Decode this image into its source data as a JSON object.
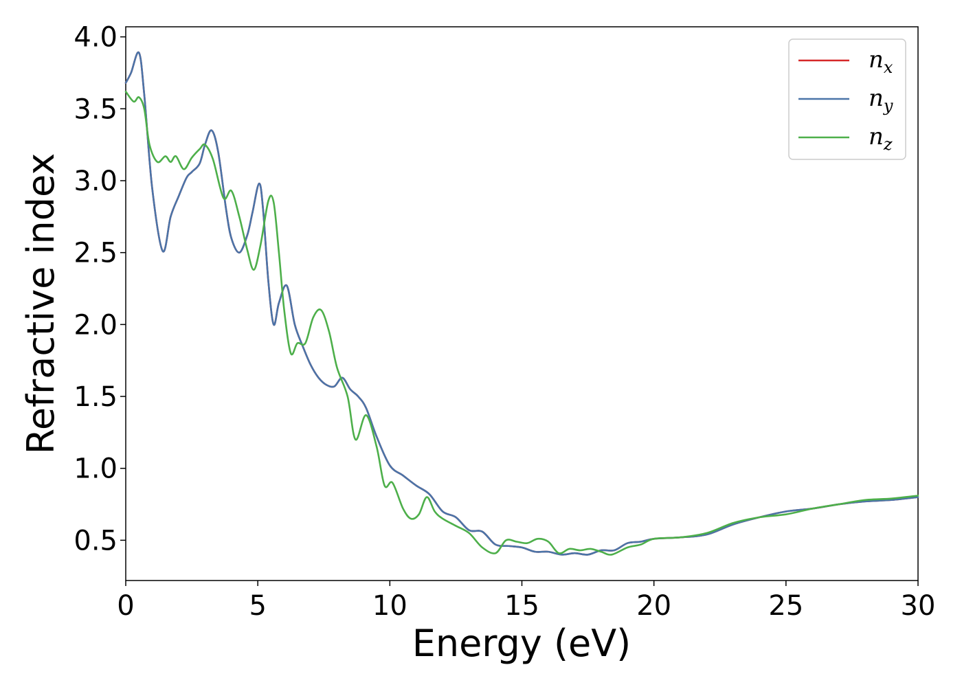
{
  "chart_data": {
    "type": "line",
    "xlabel": "Energy (eV)",
    "ylabel": "Refractive index",
    "xlim": [
      0,
      30
    ],
    "ylim": [
      0.22,
      4.07
    ],
    "xticks": [
      0,
      5,
      10,
      15,
      20,
      25,
      30
    ],
    "xtick_labels": [
      "0",
      "5",
      "10",
      "15",
      "20",
      "25",
      "30"
    ],
    "yticks": [
      0.5,
      1.0,
      1.5,
      2.0,
      2.5,
      3.0,
      3.5,
      4.0
    ],
    "ytick_labels": [
      "0.5",
      "1.0",
      "1.5",
      "2.0",
      "2.5",
      "3.0",
      "3.5",
      "4.0"
    ],
    "grid": false,
    "legend": "top-right",
    "series": [
      {
        "name": "n",
        "sub": "x",
        "color": "#d62728",
        "x": [
          0,
          0.2,
          0.5,
          0.7,
          1.0,
          1.4,
          1.7,
          2.0,
          2.3,
          2.5,
          2.8,
          3.0,
          3.25,
          3.5,
          3.8,
          4.0,
          4.3,
          4.6,
          4.8,
          5.05,
          5.2,
          5.4,
          5.6,
          5.8,
          6.1,
          6.4,
          6.7,
          7.0,
          7.3,
          7.6,
          7.9,
          8.2,
          8.5,
          8.8,
          9.1,
          9.5,
          10.0,
          10.5,
          11.0,
          11.5,
          12.0,
          12.5,
          13.0,
          13.5,
          14.0,
          14.5,
          15.0,
          15.5,
          16.0,
          16.5,
          17.0,
          17.5,
          18.0,
          18.5,
          19.0,
          19.5,
          20.0,
          21.0,
          22.0,
          23.0,
          24.0,
          25.0,
          26.0,
          27.0,
          28.0,
          29.0,
          30.0
        ],
        "y": [
          3.68,
          3.75,
          3.89,
          3.6,
          2.95,
          2.51,
          2.75,
          2.89,
          3.02,
          3.06,
          3.12,
          3.25,
          3.35,
          3.2,
          2.8,
          2.6,
          2.5,
          2.62,
          2.78,
          2.98,
          2.8,
          2.3,
          2.0,
          2.15,
          2.27,
          2.0,
          1.85,
          1.72,
          1.63,
          1.58,
          1.57,
          1.63,
          1.55,
          1.5,
          1.42,
          1.22,
          1.02,
          0.95,
          0.88,
          0.82,
          0.7,
          0.66,
          0.57,
          0.56,
          0.47,
          0.46,
          0.45,
          0.42,
          0.42,
          0.4,
          0.41,
          0.4,
          0.43,
          0.43,
          0.48,
          0.49,
          0.51,
          0.52,
          0.54,
          0.61,
          0.66,
          0.7,
          0.72,
          0.75,
          0.77,
          0.78,
          0.8
        ]
      },
      {
        "name": "n",
        "sub": "y",
        "color": "#4a74a8",
        "x": [
          0,
          0.2,
          0.5,
          0.7,
          1.0,
          1.4,
          1.7,
          2.0,
          2.3,
          2.5,
          2.8,
          3.0,
          3.25,
          3.5,
          3.8,
          4.0,
          4.3,
          4.6,
          4.8,
          5.05,
          5.2,
          5.4,
          5.6,
          5.8,
          6.1,
          6.4,
          6.7,
          7.0,
          7.3,
          7.6,
          7.9,
          8.2,
          8.5,
          8.8,
          9.1,
          9.5,
          10.0,
          10.5,
          11.0,
          11.5,
          12.0,
          12.5,
          13.0,
          13.5,
          14.0,
          14.5,
          15.0,
          15.5,
          16.0,
          16.5,
          17.0,
          17.5,
          18.0,
          18.5,
          19.0,
          19.5,
          20.0,
          21.0,
          22.0,
          23.0,
          24.0,
          25.0,
          26.0,
          27.0,
          28.0,
          29.0,
          30.0
        ],
        "y": [
          3.68,
          3.75,
          3.89,
          3.6,
          2.95,
          2.51,
          2.75,
          2.89,
          3.02,
          3.06,
          3.12,
          3.25,
          3.35,
          3.2,
          2.8,
          2.6,
          2.5,
          2.62,
          2.78,
          2.98,
          2.8,
          2.3,
          2.0,
          2.15,
          2.27,
          2.0,
          1.85,
          1.72,
          1.63,
          1.58,
          1.57,
          1.63,
          1.55,
          1.5,
          1.42,
          1.22,
          1.02,
          0.95,
          0.88,
          0.82,
          0.7,
          0.66,
          0.57,
          0.56,
          0.47,
          0.46,
          0.45,
          0.42,
          0.42,
          0.4,
          0.41,
          0.4,
          0.43,
          0.43,
          0.48,
          0.49,
          0.51,
          0.52,
          0.54,
          0.61,
          0.66,
          0.7,
          0.72,
          0.75,
          0.77,
          0.78,
          0.8
        ]
      },
      {
        "name": "n",
        "sub": "z",
        "color": "#4daf4a",
        "x": [
          0,
          0.3,
          0.5,
          0.7,
          0.9,
          1.2,
          1.5,
          1.7,
          1.9,
          2.2,
          2.5,
          2.8,
          3.0,
          3.3,
          3.7,
          4.0,
          4.3,
          4.6,
          4.85,
          5.1,
          5.4,
          5.6,
          5.8,
          6.0,
          6.25,
          6.5,
          6.8,
          7.1,
          7.4,
          7.7,
          8.0,
          8.4,
          8.7,
          9.1,
          9.5,
          9.8,
          10.1,
          10.5,
          10.8,
          11.1,
          11.4,
          11.7,
          12.0,
          12.5,
          13.0,
          13.5,
          14.0,
          14.4,
          14.8,
          15.2,
          15.6,
          16.0,
          16.4,
          16.8,
          17.2,
          17.6,
          18.0,
          18.4,
          19.0,
          19.5,
          20.0,
          21.0,
          22.0,
          23.0,
          24.0,
          25.0,
          26.0,
          27.0,
          28.0,
          29.0,
          30.0
        ],
        "y": [
          3.62,
          3.55,
          3.58,
          3.5,
          3.25,
          3.13,
          3.17,
          3.13,
          3.17,
          3.08,
          3.16,
          3.22,
          3.25,
          3.15,
          2.88,
          2.93,
          2.75,
          2.52,
          2.38,
          2.55,
          2.86,
          2.85,
          2.5,
          2.1,
          1.8,
          1.87,
          1.87,
          2.05,
          2.1,
          1.95,
          1.7,
          1.5,
          1.2,
          1.37,
          1.15,
          0.88,
          0.9,
          0.72,
          0.65,
          0.68,
          0.8,
          0.7,
          0.65,
          0.6,
          0.55,
          0.45,
          0.41,
          0.5,
          0.49,
          0.48,
          0.51,
          0.49,
          0.41,
          0.44,
          0.43,
          0.44,
          0.42,
          0.4,
          0.45,
          0.47,
          0.51,
          0.52,
          0.55,
          0.62,
          0.66,
          0.68,
          0.72,
          0.75,
          0.78,
          0.79,
          0.81
        ]
      }
    ]
  }
}
